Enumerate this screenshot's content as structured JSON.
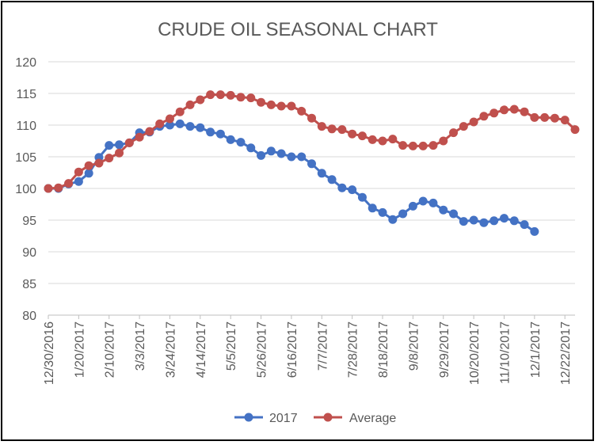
{
  "chart_data": {
    "type": "line",
    "title": "CRUDE OIL SEASONAL CHART",
    "xlabel": "",
    "ylabel": "",
    "ylim": [
      80,
      120
    ],
    "yticks": [
      80,
      85,
      90,
      95,
      100,
      105,
      110,
      115,
      120
    ],
    "xtick_labels": [
      "12/30/2016",
      "1/20/2017",
      "2/10/2017",
      "3/3/2017",
      "3/24/2017",
      "4/14/2017",
      "5/5/2017",
      "5/26/2017",
      "6/16/2017",
      "7/7/2017",
      "7/28/2017",
      "8/18/2017",
      "9/8/2017",
      "9/29/2017",
      "10/20/2017",
      "11/10/2017",
      "12/1/2017",
      "12/22/2017"
    ],
    "x_points": 53,
    "grid": true,
    "legend": "bottom",
    "series": [
      {
        "name": "2017",
        "color": "#4472c4",
        "values": [
          100,
          100,
          100.7,
          101.1,
          102.4,
          104.9,
          106.8,
          106.9,
          107.2,
          108.8,
          108.9,
          109.8,
          110,
          110.2,
          109.8,
          109.6,
          108.9,
          108.6,
          107.7,
          107.3,
          106.4,
          105.2,
          105.9,
          105.5,
          105,
          105,
          103.9,
          102.4,
          101.4,
          100.1,
          99.8,
          98.6,
          96.9,
          96.2,
          95.1,
          96,
          97.2,
          98,
          97.7,
          96.6,
          96,
          94.8,
          95,
          94.6,
          94.9,
          95.3,
          94.9,
          94.3,
          93.2
        ]
      },
      {
        "name": "Average",
        "color": "#c0504d",
        "values": [
          100,
          100.1,
          100.8,
          102.6,
          103.6,
          104,
          104.8,
          105.6,
          107.2,
          108.1,
          109,
          110.2,
          111,
          112.1,
          113.2,
          114,
          114.8,
          114.8,
          114.7,
          114.4,
          114.3,
          113.6,
          113.2,
          113,
          113,
          112.2,
          111.1,
          109.8,
          109.4,
          109.3,
          108.6,
          108.3,
          107.7,
          107.5,
          107.8,
          106.8,
          106.7,
          106.7,
          106.8,
          107.5,
          108.8,
          109.8,
          110.5,
          111.4,
          111.9,
          112.4,
          112.5,
          112.1,
          111.2,
          111.2,
          111.1,
          110.8,
          109.3
        ]
      }
    ]
  }
}
